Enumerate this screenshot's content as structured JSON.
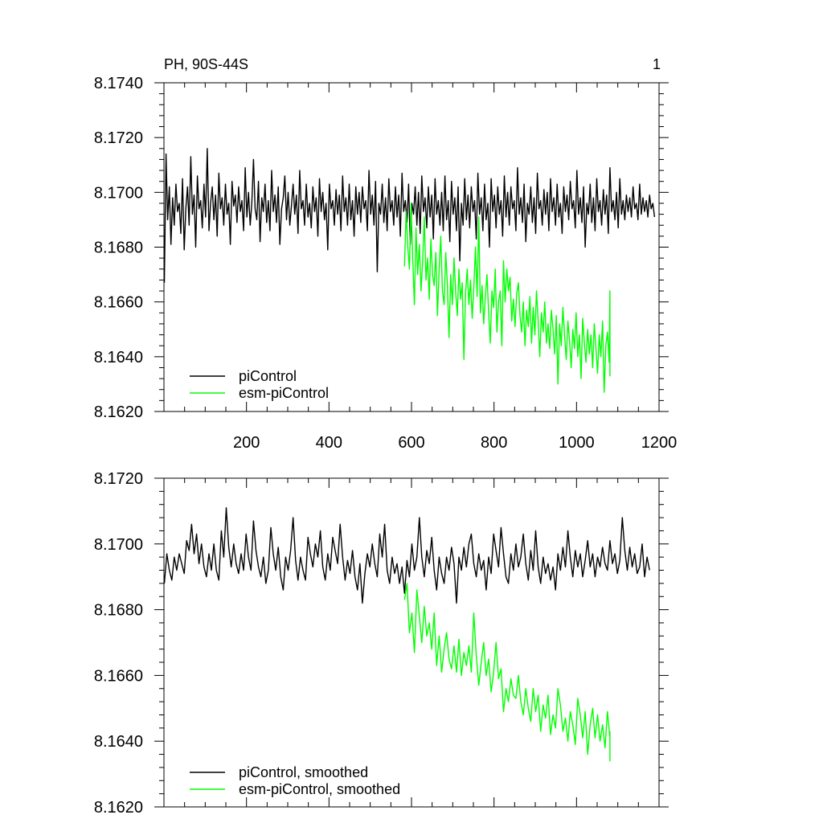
{
  "chart_data": [
    {
      "type": "line",
      "panel": "top",
      "title": "PH, 90S-44S",
      "panel_label": "1",
      "xlim": [
        0,
        1200
      ],
      "ylim": [
        8.162,
        8.174
      ],
      "x_ticks": [
        200,
        400,
        600,
        800,
        1000,
        1200
      ],
      "x_tick_labels": [
        "200",
        "400",
        "600",
        "800",
        "1000",
        "1200"
      ],
      "y_ticks": [
        8.162,
        8.164,
        8.166,
        8.168,
        8.17,
        8.172,
        8.174
      ],
      "y_tick_labels": [
        "8.1620",
        "8.1640",
        "8.1660",
        "8.1680",
        "8.1700",
        "8.1720",
        "8.1740"
      ],
      "legend_position": "bottom-left",
      "series": [
        {
          "name": "piControl",
          "color": "#000000",
          "x_start": 1,
          "x_end": 1200,
          "step": 4,
          "values": [
            8.1667,
            8.1714,
            8.169,
            8.1702,
            8.1681,
            8.1698,
            8.1688,
            8.1703,
            8.1693,
            8.1696,
            8.1685,
            8.1705,
            8.1679,
            8.1694,
            8.1702,
            8.1688,
            8.1713,
            8.1692,
            8.1699,
            8.168,
            8.1706,
            8.1694,
            8.1697,
            8.1687,
            8.1703,
            8.1691,
            8.1716,
            8.1686,
            8.1696,
            8.1702,
            8.169,
            8.1699,
            8.1684,
            8.1707,
            8.1694,
            8.1698,
            8.1688,
            8.1703,
            8.1692,
            8.1696,
            8.1681,
            8.1704,
            8.1695,
            8.1699,
            8.1689,
            8.1702,
            8.1693,
            8.1697,
            8.1686,
            8.1709,
            8.1691,
            8.17,
            8.1688,
            8.1696,
            8.1712,
            8.1694,
            8.169,
            8.1704,
            8.1682,
            8.1698,
            8.1693,
            8.1703,
            8.1689,
            8.1697,
            8.1686,
            8.1708,
            8.1693,
            8.1699,
            8.1689,
            8.1702,
            8.1681,
            8.1694,
            8.1698,
            8.1706,
            8.169,
            8.17,
            8.1688,
            8.1695,
            8.1703,
            8.1692,
            8.1699,
            8.1685,
            8.1708,
            8.1694,
            8.1697,
            8.1688,
            8.1703,
            8.1691,
            8.1696,
            8.1687,
            8.1702,
            8.1693,
            8.1698,
            8.1684,
            8.1705,
            8.1693,
            8.17,
            8.169,
            8.1696,
            8.1679,
            8.1703,
            8.1694,
            8.1697,
            8.1688,
            8.1701,
            8.1692,
            8.1699,
            8.1686,
            8.1706,
            8.1693,
            8.1698,
            8.1688,
            8.1703,
            8.169,
            8.1697,
            8.1684,
            8.1702,
            8.1692,
            8.17,
            8.1689,
            8.1702,
            8.1694,
            8.1697,
            8.1686,
            8.1708,
            8.1692,
            8.1699,
            8.1688,
            8.1704,
            8.1671,
            8.1696,
            8.1692,
            8.1703,
            8.1689,
            8.1698,
            8.1686,
            8.1705,
            8.1693,
            8.1697,
            8.1688,
            8.1702,
            8.1691,
            8.1699,
            8.1684,
            8.1707,
            8.1693,
            8.1697,
            8.1689,
            8.1703,
            8.1681,
            8.1696,
            8.1692,
            8.1702,
            8.1688,
            8.17,
            8.1685,
            8.1706,
            8.1693,
            8.1698,
            8.1687,
            8.1702,
            8.1691,
            8.1699,
            8.1683,
            8.1705,
            8.1692,
            8.1697,
            8.1688,
            8.17,
            8.1686,
            8.1706,
            8.169,
            8.1697,
            8.1682,
            8.1704,
            8.1692,
            8.1698,
            8.1686,
            8.1702,
            8.1675,
            8.1696,
            8.1688,
            8.1705,
            8.169,
            8.1699,
            8.1687,
            8.1702,
            8.1693,
            8.1697,
            8.1683,
            8.1707,
            8.1692,
            8.1698,
            8.1686,
            8.1703,
            8.169,
            8.1696,
            8.168,
            8.1705,
            8.1693,
            8.1699,
            8.1687,
            8.1702,
            8.1692,
            8.1697,
            8.1684,
            8.1706,
            8.1691,
            8.17,
            8.1688,
            8.1702,
            8.1694,
            8.1697,
            8.1686,
            8.1709,
            8.1692,
            8.1698,
            8.1689,
            8.1703,
            8.1682,
            8.1696,
            8.1692,
            8.1702,
            8.1689,
            8.1698,
            8.1685,
            8.1707,
            8.1694,
            8.1697,
            8.1688,
            8.1701,
            8.1692,
            8.17,
            8.1686,
            8.1705,
            8.1693,
            8.1698,
            8.1688,
            8.1703,
            8.1691,
            8.1696,
            8.1685,
            8.1702,
            8.1693,
            8.1699,
            8.169,
            8.1704,
            8.1694,
            8.1697,
            8.1687,
            8.1708,
            8.1692,
            8.1698,
            8.1689,
            8.1702,
            8.168,
            8.1696,
            8.1692,
            8.1703,
            8.1689,
            8.1698,
            8.1686,
            8.1705,
            8.1693,
            8.1697,
            8.1688,
            8.1701,
            8.1692,
            8.1699,
            8.1685,
            8.1709,
            8.1693,
            8.1697,
            8.169,
            8.17,
            8.1687,
            8.1705,
            8.1692,
            8.1697,
            8.169,
            8.1699,
            8.1693,
            8.1698,
            8.1691,
            8.1702,
            8.1694,
            8.1696,
            8.169,
            8.1703,
            8.1692,
            8.1698,
            8.1693,
            8.1697,
            8.1691,
            8.1699,
            8.1694,
            8.1696,
            8.1691
          ]
        },
        {
          "name": "esm-piControl",
          "color": "#00ff00",
          "x_start": 583,
          "x_end": 1081,
          "step": 4,
          "values": [
            8.1673,
            8.1693,
            8.168,
            8.1672,
            8.1696,
            8.1676,
            8.1659,
            8.1687,
            8.167,
            8.1681,
            8.1664,
            8.1675,
            8.1691,
            8.1668,
            8.1676,
            8.1661,
            8.1683,
            8.167,
            8.1666,
            8.1678,
            8.1655,
            8.1672,
            8.1684,
            8.1664,
            8.1659,
            8.1678,
            8.1666,
            8.1647,
            8.167,
            8.1659,
            8.1676,
            8.1664,
            8.1655,
            8.1672,
            8.1661,
            8.1667,
            8.1639,
            8.1663,
            8.1672,
            8.1659,
            8.1668,
            8.1654,
            8.1665,
            8.168,
            8.1662,
            8.1691,
            8.1656,
            8.1666,
            8.1652,
            8.1662,
            8.167,
            8.1656,
            8.1645,
            8.1664,
            8.1658,
            8.1672,
            8.1649,
            8.166,
            8.1664,
            8.1644,
            8.1675,
            8.166,
            8.1672,
            8.1664,
            8.1669,
            8.1653,
            8.1661,
            8.1651,
            8.1663,
            8.1667,
            8.1655,
            8.1649,
            8.166,
            8.1644,
            8.1657,
            8.1651,
            8.1662,
            8.1645,
            8.1658,
            8.1648,
            8.1664,
            8.1653,
            8.164,
            8.1656,
            8.1649,
            8.166,
            8.1645,
            8.1652,
            8.1643,
            8.1657,
            8.165,
            8.1641,
            8.1655,
            8.163,
            8.1652,
            8.1644,
            8.1658,
            8.1648,
            8.1639,
            8.1653,
            8.1646,
            8.1636,
            8.165,
            8.1643,
            8.1656,
            8.164,
            8.1648,
            8.1632,
            8.1654,
            8.1645,
            8.1638,
            8.165,
            8.1641,
            8.1648,
            8.1636,
            8.1652,
            8.1643,
            8.1634,
            8.1648,
            8.164,
            8.1653,
            8.1627,
            8.1644,
            8.1649,
            8.1638,
            8.1664,
            8.1633,
            8.1645
          ]
        }
      ]
    },
    {
      "type": "line",
      "panel": "bottom",
      "xlim": [
        0,
        1200
      ],
      "ylim": [
        8.162,
        8.172
      ],
      "y_ticks": [
        8.162,
        8.164,
        8.166,
        8.168,
        8.17,
        8.172
      ],
      "y_tick_labels": [
        "8.1620",
        "8.1640",
        "8.1660",
        "8.1680",
        "8.1700",
        "8.1720"
      ],
      "legend_position": "bottom-left",
      "series": [
        {
          "name": "piControl, smoothed",
          "color": "#000000",
          "x_start": 1,
          "x_end": 1200,
          "step": 6,
          "values": [
            8.1688,
            8.1697,
            8.1692,
            8.1689,
            8.1696,
            8.1692,
            8.1697,
            8.1694,
            8.1691,
            8.1701,
            8.1698,
            8.1706,
            8.1697,
            8.1703,
            8.1694,
            8.17,
            8.1693,
            8.169,
            8.1697,
            8.1692,
            8.17,
            8.1692,
            8.1689,
            8.1704,
            8.1696,
            8.1711,
            8.1699,
            8.1693,
            8.17,
            8.1694,
            8.1691,
            8.1697,
            8.1692,
            8.1703,
            8.1696,
            8.1692,
            8.1707,
            8.1698,
            8.1693,
            8.169,
            8.1696,
            8.1688,
            8.1692,
            8.1705,
            8.1697,
            8.1692,
            8.1699,
            8.169,
            8.1686,
            8.1696,
            8.1692,
            8.1698,
            8.1708,
            8.1695,
            8.1689,
            8.1696,
            8.1692,
            8.1689,
            8.1702,
            8.1697,
            8.1693,
            8.17,
            8.1696,
            8.1704,
            8.1693,
            8.1689,
            8.1697,
            8.1692,
            8.1702,
            8.1698,
            8.1694,
            8.1706,
            8.1696,
            8.1689,
            8.1695,
            8.1691,
            8.1698,
            8.169,
            8.1686,
            8.1694,
            8.1682,
            8.1691,
            8.1697,
            8.1693,
            8.17,
            8.1694,
            8.169,
            8.1703,
            8.1696,
            8.1706,
            8.1692,
            8.1688,
            8.1696,
            8.1691,
            8.1694,
            8.1688,
            8.1693,
            8.1685,
            8.1695,
            8.169,
            8.17,
            8.1692,
            8.1696,
            8.1708,
            8.1696,
            8.169,
            8.1698,
            8.1694,
            8.1702,
            8.1692,
            8.1686,
            8.1696,
            8.1691,
            8.1688,
            8.1696,
            8.1692,
            8.1699,
            8.1694,
            8.1682,
            8.1696,
            8.1692,
            8.1699,
            8.1693,
            8.17,
            8.1703,
            8.1694,
            8.169,
            8.1697,
            8.1692,
            8.1695,
            8.1686,
            8.1696,
            8.1691,
            8.1703,
            8.1698,
            8.1693,
            8.1705,
            8.1697,
            8.169,
            8.1688,
            8.1697,
            8.1692,
            8.17,
            8.1693,
            8.1696,
            8.1703,
            8.1694,
            8.1689,
            8.1698,
            8.1692,
            8.1704,
            8.1693,
            8.1688,
            8.1696,
            8.1691,
            8.1694,
            8.1689,
            8.1693,
            8.1686,
            8.1697,
            8.1692,
            8.1699,
            8.1693,
            8.1704,
            8.1696,
            8.169,
            8.1698,
            8.1693,
            8.1697,
            8.169,
            8.1695,
            8.1701,
            8.1693,
            8.1697,
            8.169,
            8.1696,
            8.1693,
            8.1699,
            8.1694,
            8.1692,
            8.1701,
            8.1694,
            8.1697,
            8.1691,
            8.1695,
            8.1708,
            8.1698,
            8.1692,
            8.1699,
            8.1693,
            8.1697,
            8.1691,
            8.1693,
            8.17,
            8.169,
            8.1696,
            8.1692
          ]
        },
        {
          "name": "esm-piControl, smoothed",
          "color": "#00ff00",
          "x_start": 583,
          "x_end": 1081,
          "step": 6,
          "values": [
            8.1683,
            8.1688,
            8.1673,
            8.1679,
            8.1667,
            8.1686,
            8.1678,
            8.167,
            8.1681,
            8.1672,
            8.1676,
            8.1668,
            8.1679,
            8.1663,
            8.1672,
            8.1661,
            8.1668,
            8.1673,
            8.1665,
            8.1662,
            8.1669,
            8.1661,
            8.1671,
            8.166,
            8.1667,
            8.1663,
            8.1669,
            8.1661,
            8.1679,
            8.1666,
            8.1657,
            8.1664,
            8.167,
            8.166,
            8.1665,
            8.1655,
            8.1661,
            8.167,
            8.1659,
            8.1662,
            8.1649,
            8.1656,
            8.1652,
            8.1659,
            8.1654,
            8.1653,
            8.166,
            8.1652,
            8.1648,
            8.1656,
            8.165,
            8.1646,
            8.1656,
            8.1649,
            8.1654,
            8.1643,
            8.1651,
            8.1647,
            8.1654,
            8.1642,
            8.1648,
            8.1644,
            8.1656,
            8.1651,
            8.1643,
            8.1647,
            8.164,
            8.1649,
            8.1645,
            8.1639,
            8.1653,
            8.1648,
            8.1641,
            8.1649,
            8.1636,
            8.1645,
            8.165,
            8.1641,
            8.1648,
            8.164,
            8.1645,
            8.1638,
            8.1649,
            8.1641,
            8.1634,
            8.1643
          ]
        }
      ]
    }
  ]
}
